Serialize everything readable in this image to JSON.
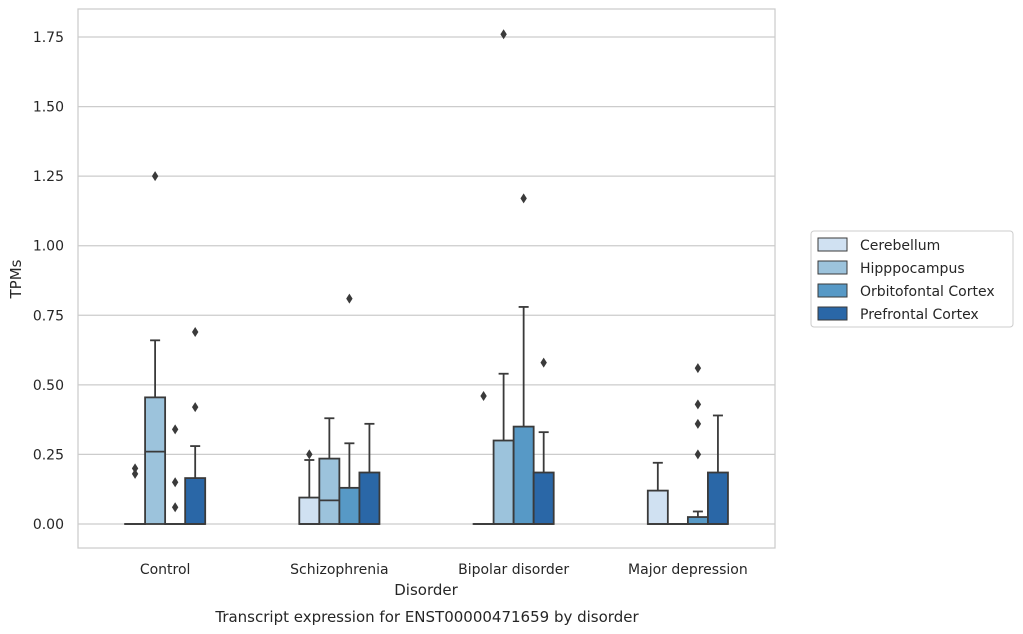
{
  "chart_data": {
    "type": "box",
    "title": "",
    "caption": "Transcript expression for ENST00000471659 by disorder",
    "xlabel": "Disorder",
    "ylabel": "TPMs",
    "ylim": [
      -0.085,
      1.85
    ],
    "yticks": [
      0.0,
      0.25,
      0.5,
      0.75,
      1.0,
      1.25,
      1.5,
      1.75
    ],
    "ytick_labels": [
      "0.00",
      "0.25",
      "0.50",
      "0.75",
      "1.00",
      "1.25",
      "1.50",
      "1.75"
    ],
    "grid": "horizontal",
    "legend_position": "right",
    "categories": [
      "Control",
      "Schizophrenia",
      "Bipolar disorder",
      "Major depression"
    ],
    "series": [
      {
        "name": "Cerebellum",
        "color": "#d0e1f2",
        "boxes": [
          {
            "min": 0,
            "q1": 0,
            "median": 0,
            "q3": 0,
            "max": 0,
            "outliers": [
              0.18,
              0.2
            ]
          },
          {
            "min": 0,
            "q1": 0,
            "median": 0,
            "q3": 0.095,
            "max": 0.23,
            "outliers": [
              0.25
            ]
          },
          {
            "min": 0,
            "q1": 0,
            "median": 0,
            "q3": 0,
            "max": 0,
            "outliers": [
              0.46
            ]
          },
          {
            "min": 0,
            "q1": 0,
            "median": 0,
            "q3": 0.12,
            "max": 0.22,
            "outliers": []
          }
        ]
      },
      {
        "name": "Hipppocampus",
        "color": "#9cc3dc",
        "boxes": [
          {
            "min": 0,
            "q1": 0,
            "median": 0.26,
            "q3": 0.455,
            "max": 0.66,
            "outliers": [
              1.25
            ]
          },
          {
            "min": 0,
            "q1": 0,
            "median": 0.085,
            "q3": 0.235,
            "max": 0.38,
            "outliers": []
          },
          {
            "min": 0,
            "q1": 0,
            "median": 0,
            "q3": 0.3,
            "max": 0.54,
            "outliers": [
              1.76
            ]
          },
          {
            "min": 0,
            "q1": 0,
            "median": 0,
            "q3": 0,
            "max": 0,
            "outliers": []
          }
        ]
      },
      {
        "name": "Orbitofontal Cortex",
        "color": "#5799c6",
        "boxes": [
          {
            "min": 0,
            "q1": 0,
            "median": 0,
            "q3": 0,
            "max": 0,
            "outliers": [
              0.06,
              0.15,
              0.34
            ]
          },
          {
            "min": 0,
            "q1": 0,
            "median": 0,
            "q3": 0.13,
            "max": 0.29,
            "outliers": [
              0.81
            ]
          },
          {
            "min": 0,
            "q1": 0,
            "median": 0,
            "q3": 0.35,
            "max": 0.78,
            "outliers": [
              1.17
            ]
          },
          {
            "min": 0,
            "q1": 0,
            "median": 0,
            "q3": 0.025,
            "max": 0.045,
            "outliers": [
              0.25,
              0.36,
              0.43,
              0.56
            ]
          }
        ]
      },
      {
        "name": "Prefrontal Cortex",
        "color": "#2a67a7",
        "boxes": [
          {
            "min": 0,
            "q1": 0,
            "median": 0,
            "q3": 0.165,
            "max": 0.28,
            "outliers": [
              0.42,
              0.69
            ]
          },
          {
            "min": 0,
            "q1": 0,
            "median": 0,
            "q3": 0.185,
            "max": 0.36,
            "outliers": []
          },
          {
            "min": 0,
            "q1": 0,
            "median": 0,
            "q3": 0.185,
            "max": 0.33,
            "outliers": [
              0.58
            ]
          },
          {
            "min": 0,
            "q1": 0,
            "median": 0,
            "q3": 0.185,
            "max": 0.39,
            "outliers": []
          }
        ]
      }
    ]
  }
}
